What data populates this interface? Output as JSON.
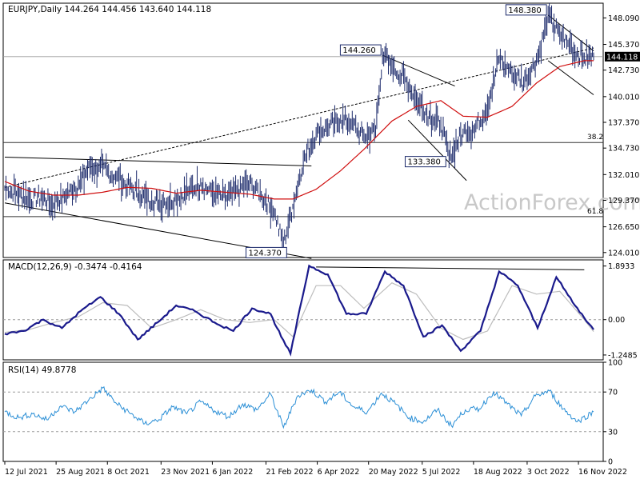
{
  "chart_data": [
    {
      "type": "line",
      "panel": "price",
      "title": "EURJPY,Daily  144.264 144.456 143.640 144.118",
      "watermark": "ActionForex.com",
      "ylim": [
        123.5,
        149.6
      ],
      "yticks": [
        {
          "value": 148.09,
          "label": "148.090"
        },
        {
          "value": 145.37,
          "label": "145.370"
        },
        {
          "value": 142.73,
          "label": "142.730"
        },
        {
          "value": 140.01,
          "label": "140.010"
        },
        {
          "value": 137.37,
          "label": "137.370"
        },
        {
          "value": 134.73,
          "label": "134.730"
        },
        {
          "value": 132.01,
          "label": "132.010"
        },
        {
          "value": 129.37,
          "label": "129.370"
        },
        {
          "value": 126.65,
          "label": "126.650"
        },
        {
          "value": 124.01,
          "label": "124.010"
        }
      ],
      "current_price": {
        "value": 144.118,
        "label": "144.118"
      },
      "fib_levels": [
        {
          "value": 135.3,
          "label": "38.2"
        },
        {
          "value": 127.7,
          "label": "61.8"
        }
      ],
      "annotations": [
        {
          "label": "148.380",
          "x": "2022-10-21",
          "y": 148.38
        },
        {
          "label": "144.260",
          "x": "2022-06-01",
          "y": 144.26
        },
        {
          "label": "133.380",
          "x": "2022-07-28",
          "y": 133.38
        },
        {
          "label": "124.370",
          "x": "2022-03-08",
          "y": 124.37
        }
      ],
      "series": [
        {
          "key": "close",
          "x": [
            "2021-07-12",
            "2021-07-22",
            "2021-08-02",
            "2021-08-12",
            "2021-08-23",
            "2021-09-02",
            "2021-09-13",
            "2021-09-23",
            "2021-10-04",
            "2021-10-14",
            "2021-10-25",
            "2021-11-04",
            "2021-11-15",
            "2021-11-25",
            "2021-12-06",
            "2021-12-16",
            "2021-12-27",
            "2022-01-06",
            "2022-01-17",
            "2022-01-27",
            "2022-02-07",
            "2022-02-17",
            "2022-02-28",
            "2022-03-08",
            "2022-03-16",
            "2022-03-25",
            "2022-04-05",
            "2022-04-15",
            "2022-04-26",
            "2022-05-05",
            "2022-05-16",
            "2022-05-26",
            "2022-06-01",
            "2022-06-09",
            "2022-06-20",
            "2022-06-30",
            "2022-07-11",
            "2022-07-21",
            "2022-07-28",
            "2022-08-09",
            "2022-08-19",
            "2022-08-30",
            "2022-09-09",
            "2022-09-20",
            "2022-09-30",
            "2022-10-11",
            "2022-10-21",
            "2022-10-31",
            "2022-11-10",
            "2022-11-21",
            "2022-11-29"
          ],
          "values": [
            130.6,
            130.1,
            129.4,
            129.7,
            128.9,
            129.9,
            130.9,
            132.8,
            132.6,
            131.8,
            130.9,
            130.1,
            129.3,
            129.1,
            129.6,
            130.3,
            131.1,
            130.2,
            129.6,
            130.4,
            131.2,
            129.9,
            128.1,
            124.8,
            128.8,
            133.4,
            136.2,
            136.9,
            137.7,
            137.2,
            135.9,
            136.6,
            144.2,
            143.1,
            141.8,
            139.7,
            138.1,
            137.1,
            133.8,
            136.4,
            136.7,
            138.9,
            143.9,
            142.6,
            141.4,
            143.7,
            148.2,
            146.4,
            145.1,
            143.9,
            144.1
          ]
        },
        {
          "key": "sma55",
          "x": [
            "2021-07-12",
            "2021-08-02",
            "2021-08-23",
            "2021-09-13",
            "2021-10-04",
            "2021-10-25",
            "2021-11-15",
            "2021-12-06",
            "2021-12-27",
            "2022-01-17",
            "2022-02-07",
            "2022-02-28",
            "2022-03-16",
            "2022-04-05",
            "2022-04-26",
            "2022-05-16",
            "2022-06-09",
            "2022-06-30",
            "2022-07-21",
            "2022-08-09",
            "2022-08-30",
            "2022-09-20",
            "2022-10-11",
            "2022-10-31",
            "2022-11-21",
            "2022-11-29"
          ],
          "values": [
            131.3,
            130.3,
            129.9,
            129.9,
            130.2,
            130.7,
            130.6,
            130.1,
            130.4,
            130.2,
            130.0,
            129.5,
            129.5,
            130.5,
            132.4,
            134.6,
            137.5,
            139.0,
            139.6,
            138.0,
            137.9,
            139.0,
            141.4,
            143.1,
            143.7,
            143.7
          ]
        }
      ],
      "trendlines": [
        {
          "from": [
            "2021-07-12",
            130.7
          ],
          "to": [
            "2022-11-29",
            145.0
          ]
        },
        {
          "from": [
            "2021-07-12",
            133.8
          ],
          "to": [
            "2022-04-01",
            132.9
          ]
        },
        {
          "from": [
            "2021-07-12",
            129.1
          ],
          "to": [
            "2022-04-01",
            123.4
          ]
        },
        {
          "from": [
            "2022-06-01",
            144.26
          ],
          "to": [
            "2022-08-02",
            141.1
          ]
        },
        {
          "from": [
            "2022-06-23",
            137.6
          ],
          "to": [
            "2022-08-12",
            131.4
          ]
        },
        {
          "from": [
            "2022-10-21",
            148.38
          ],
          "to": [
            "2022-11-29",
            144.7
          ]
        },
        {
          "from": [
            "2022-10-21",
            143.7
          ],
          "to": [
            "2022-11-29",
            140.2
          ]
        }
      ]
    },
    {
      "type": "line",
      "panel": "macd",
      "title": "MACD(12,26,9) -0.3474 -0.4164",
      "ylim": [
        -1.42,
        2.11
      ],
      "yticks": [
        {
          "value": 1.8933,
          "label": "1.8933"
        },
        {
          "value": 0.0,
          "label": "0.00"
        },
        {
          "value": -1.2485,
          "label": "-1.2485"
        }
      ],
      "current": [
        {
          "value": -0.3474,
          "label": "-0.3474"
        },
        {
          "value": -0.4164,
          "label": "-0.4164"
        }
      ],
      "trendline": {
        "from": [
          "2022-04-05",
          1.86
        ],
        "to": [
          "2022-11-21",
          1.76
        ]
      },
      "series": [
        {
          "key": "macd",
          "x": [
            "2021-07-12",
            "2021-07-28",
            "2021-08-14",
            "2021-08-30",
            "2021-09-15",
            "2021-10-02",
            "2021-10-18",
            "2021-11-03",
            "2021-11-20",
            "2021-12-06",
            "2021-12-22",
            "2022-01-08",
            "2022-01-24",
            "2022-02-09",
            "2022-02-25",
            "2022-03-06",
            "2022-03-14",
            "2022-03-30",
            "2022-04-15",
            "2022-05-01",
            "2022-05-18",
            "2022-06-03",
            "2022-06-19",
            "2022-07-06",
            "2022-07-22",
            "2022-08-07",
            "2022-08-24",
            "2022-09-09",
            "2022-09-25",
            "2022-10-12",
            "2022-10-28",
            "2022-11-13",
            "2022-11-29"
          ],
          "values": [
            -0.5,
            -0.4,
            0.0,
            -0.3,
            0.3,
            0.8,
            0.2,
            -0.7,
            -0.1,
            0.5,
            0.3,
            -0.1,
            -0.4,
            0.4,
            0.2,
            -0.6,
            -1.2,
            1.9,
            1.6,
            0.2,
            0.2,
            1.7,
            1.2,
            -0.6,
            -0.2,
            -1.1,
            -0.4,
            1.7,
            1.2,
            -0.3,
            1.5,
            0.5,
            -0.35
          ]
        },
        {
          "key": "signal",
          "x": [
            "2021-07-12",
            "2021-08-02",
            "2021-08-23",
            "2021-09-13",
            "2021-10-04",
            "2021-10-25",
            "2021-11-15",
            "2021-12-06",
            "2021-12-27",
            "2022-01-17",
            "2022-02-07",
            "2022-02-28",
            "2022-03-16",
            "2022-04-05",
            "2022-04-26",
            "2022-05-16",
            "2022-06-09",
            "2022-06-30",
            "2022-07-21",
            "2022-08-09",
            "2022-08-30",
            "2022-09-20",
            "2022-10-11",
            "2022-10-31",
            "2022-11-21",
            "2022-11-29"
          ],
          "values": [
            -0.45,
            -0.35,
            -0.1,
            0.1,
            0.6,
            0.5,
            -0.3,
            0.0,
            0.35,
            0.0,
            -0.1,
            0.0,
            -0.6,
            1.2,
            1.2,
            0.4,
            1.3,
            0.9,
            -0.3,
            -0.7,
            -0.4,
            1.2,
            0.9,
            1.0,
            0.0,
            -0.42
          ]
        }
      ]
    },
    {
      "type": "line",
      "panel": "rsi",
      "title": "RSI(14) 49.8778",
      "ylim": [
        0,
        100
      ],
      "yticks": [
        {
          "value": 100,
          "label": "100"
        },
        {
          "value": 70,
          "label": "70"
        },
        {
          "value": 30,
          "label": "30"
        },
        {
          "value": 0,
          "label": "0"
        }
      ],
      "levels": [
        70,
        30
      ],
      "series": [
        {
          "key": "rsi",
          "x": [
            "2021-07-12",
            "2021-07-24",
            "2021-08-05",
            "2021-08-17",
            "2021-08-29",
            "2021-09-10",
            "2021-09-22",
            "2021-10-04",
            "2021-10-16",
            "2021-10-28",
            "2021-11-09",
            "2021-11-21",
            "2021-12-03",
            "2021-12-15",
            "2021-12-27",
            "2022-01-08",
            "2022-01-20",
            "2022-02-01",
            "2022-02-13",
            "2022-02-25",
            "2022-03-08",
            "2022-03-20",
            "2022-04-01",
            "2022-04-13",
            "2022-04-25",
            "2022-05-07",
            "2022-05-19",
            "2022-05-31",
            "2022-06-12",
            "2022-06-24",
            "2022-07-06",
            "2022-07-18",
            "2022-07-30",
            "2022-08-11",
            "2022-08-23",
            "2022-09-04",
            "2022-09-16",
            "2022-09-28",
            "2022-10-10",
            "2022-10-22",
            "2022-11-03",
            "2022-11-15",
            "2022-11-29"
          ],
          "values": [
            50,
            44,
            48,
            42,
            56,
            50,
            62,
            74,
            58,
            48,
            38,
            42,
            55,
            48,
            60,
            51,
            45,
            58,
            52,
            68,
            34,
            66,
            72,
            60,
            70,
            55,
            50,
            69,
            58,
            44,
            40,
            52,
            36,
            52,
            53,
            70,
            58,
            46,
            66,
            71,
            53,
            40,
            50
          ]
        }
      ]
    }
  ],
  "x_axis": {
    "ticks": [
      {
        "date": "2021-07-12",
        "label": "12 Jul 2021"
      },
      {
        "date": "2021-08-25",
        "label": "25 Aug 2021"
      },
      {
        "date": "2021-10-08",
        "label": "8 Oct 2021"
      },
      {
        "date": "2021-11-23",
        "label": "23 Nov 2021"
      },
      {
        "date": "2022-01-06",
        "label": "6 Jan 2022"
      },
      {
        "date": "2022-02-21",
        "label": "21 Feb 2022"
      },
      {
        "date": "2022-04-06",
        "label": "6 Apr 2022"
      },
      {
        "date": "2022-05-20",
        "label": "20 May 2022"
      },
      {
        "date": "2022-07-05",
        "label": "5 Jul 2022"
      },
      {
        "date": "2022-08-18",
        "label": "18 Aug 2022"
      },
      {
        "date": "2022-10-03",
        "label": "3 Oct 2022"
      },
      {
        "date": "2022-11-16",
        "label": "16 Nov 2022"
      }
    ]
  },
  "colors": {
    "price": "#1c2a6b",
    "sma": "#d01010",
    "macd": "#1a1a8c",
    "signal": "#bdbdbd",
    "rsi": "#2b8fd6",
    "grid": "#9a9a9a",
    "annotation_border": "#1c2a6b",
    "price_badge": "#000000",
    "watermark": "#c8c8c8"
  }
}
